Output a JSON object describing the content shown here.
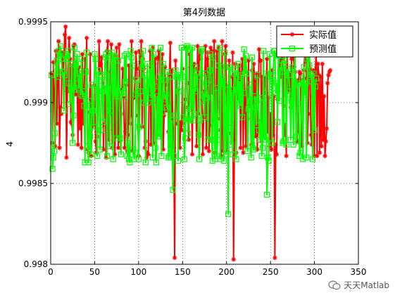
{
  "chart_data": {
    "type": "line",
    "title": "第4列数据",
    "xlabel": "",
    "ylabel": "4",
    "xlim": [
      0,
      350
    ],
    "ylim": [
      0.998,
      0.9995
    ],
    "xticks": [
      0,
      50,
      100,
      150,
      200,
      250,
      300,
      350
    ],
    "yticks": [
      0.998,
      0.9985,
      0.999,
      0.9995
    ],
    "ytick_labels": [
      "0.998",
      "0.9985",
      "0.999",
      "0.9995"
    ],
    "grid": true,
    "legend_position": "top-right",
    "n_points": 313,
    "series": [
      {
        "name": "实际值",
        "color": "#ff0000",
        "marker": "star",
        "values": [
          0.99918,
          0.99875,
          0.99925,
          0.99908,
          0.99873,
          0.99932,
          0.99887,
          0.99915,
          0.99938,
          0.99872,
          0.99897,
          0.99893,
          0.99931,
          0.99919,
          0.99927,
          0.99942,
          0.99947,
          0.99866,
          0.99907,
          0.99928,
          0.9994,
          0.99927,
          0.99888,
          0.99887,
          0.9988,
          0.99935,
          0.99936,
          0.99905,
          0.99925,
          0.99917,
          0.99874,
          0.99922,
          0.99884,
          0.99912,
          0.99872,
          0.9993,
          0.99887,
          0.99907,
          0.99927,
          0.99921,
          0.9994,
          0.99871,
          0.99869,
          0.99894,
          0.9993,
          0.99867,
          0.99885,
          0.99896,
          0.99894,
          0.99911,
          0.99876,
          0.99869,
          0.99879,
          0.99901,
          0.99938,
          0.99918,
          0.99924,
          0.99928,
          0.99912,
          0.99871,
          0.99909,
          0.99903,
          0.99866,
          0.99932,
          0.99938,
          0.99877,
          0.99893,
          0.99919,
          0.99936,
          0.99872,
          0.99883,
          0.99929,
          0.99868,
          0.99893,
          0.99934,
          0.99893,
          0.99872,
          0.99936,
          0.99876,
          0.99893,
          0.99908,
          0.99921,
          0.99903,
          0.99872,
          0.99882,
          0.99911,
          0.9987,
          0.9988,
          0.99923,
          0.99887,
          0.99892,
          0.99938,
          0.9987,
          0.99903,
          0.99903,
          0.99915,
          0.99931,
          0.99921,
          0.99892,
          0.99867,
          0.99932,
          0.99922,
          0.99938,
          0.99885,
          0.99927,
          0.99921,
          0.99872,
          0.99876,
          0.99866,
          0.99869,
          0.99868,
          0.99906,
          0.99932,
          0.99874,
          0.99913,
          0.99934,
          0.99875,
          0.99924,
          0.99927,
          0.99906,
          0.9988,
          0.99928,
          0.99932,
          0.99927,
          0.99893,
          0.99891,
          0.9993,
          0.99871,
          0.99892,
          0.99922,
          0.99895,
          0.99899,
          0.99911,
          0.99882,
          0.99917,
          0.99937,
          0.99873,
          0.9992,
          0.99884,
          0.99872,
          0.99804,
          0.99926,
          0.99912,
          0.99887,
          0.99908,
          0.99886,
          0.99872,
          0.99888,
          0.99883,
          0.99921,
          0.99887,
          0.99895,
          0.99902,
          0.99934,
          0.99912,
          0.99897,
          0.99877,
          0.9993,
          0.99922,
          0.99916,
          0.99868,
          0.99921,
          0.99924,
          0.99921,
          0.99909,
          0.99873,
          0.99935,
          0.99893,
          0.99931,
          0.99932,
          0.99927,
          0.99902,
          0.99868,
          0.99891,
          0.99907,
          0.99935,
          0.99872,
          0.99927,
          0.99931,
          0.9987,
          0.99886,
          0.99934,
          0.99932,
          0.99906,
          0.99908,
          0.99938,
          0.99869,
          0.99886,
          0.99932,
          0.9989,
          0.99934,
          0.99897,
          0.99883,
          0.99867,
          0.99938,
          0.9987,
          0.99901,
          0.9993,
          0.99935,
          0.99907,
          0.9987,
          0.999,
          0.99926,
          0.99916,
          0.99881,
          0.99886,
          0.99931,
          0.99803,
          0.99877,
          0.99924,
          0.99869,
          0.99916,
          0.99903,
          0.99919,
          0.99923,
          0.99872,
          0.99915,
          0.99927,
          0.99869,
          0.99919,
          0.99902,
          0.99873,
          0.99919,
          0.9989,
          0.99926,
          0.99898,
          0.99901,
          0.99874,
          0.9992,
          0.99875,
          0.99924,
          0.99913,
          0.99879,
          0.99918,
          0.99871,
          0.99889,
          0.99933,
          0.99926,
          0.99926,
          0.99876,
          0.99916,
          0.9988,
          0.99911,
          0.99915,
          0.99906,
          0.99927,
          0.99882,
          0.99903,
          0.99873,
          0.99893,
          0.99871,
          0.9992,
          0.9988,
          0.99904,
          0.99804,
          0.99874,
          0.99868,
          0.99902,
          0.99907,
          0.9992,
          0.99926,
          0.99916,
          0.9993,
          0.99927,
          0.99898,
          0.9988,
          0.99886,
          0.99867,
          0.99931,
          0.99907,
          0.99912,
          0.99918,
          0.99897,
          0.99927,
          0.99933,
          0.99929,
          0.99922,
          0.99919,
          0.99912,
          0.99876,
          0.99882,
          0.99914,
          0.99919,
          0.99918,
          0.99874,
          0.99873,
          0.99914,
          0.9992,
          0.9993,
          0.9993,
          0.99915,
          0.99875,
          0.99893,
          0.9993,
          0.99921,
          0.9988,
          0.99874,
          0.99904,
          0.9992,
          0.99867,
          0.9992,
          0.99931,
          0.99867,
          0.99924,
          0.99917,
          0.99869,
          0.99916,
          0.99873,
          0.99924,
          0.99877,
          0.99904,
          0.99867,
          0.99876,
          0.99884,
          0.99912,
          0.99917,
          0.99919,
          0.9992
        ]
      },
      {
        "name": "预测值",
        "color": "#00ff00",
        "marker": "square",
        "values": [
          0.99917,
          0.99859,
          0.99866,
          0.9987,
          0.99881,
          0.99922,
          0.99926,
          0.99916,
          0.99932,
          0.99929,
          0.99935,
          0.99927,
          0.99919,
          0.99919,
          0.99895,
          0.99917,
          0.9993,
          0.99927,
          0.99929,
          0.99932,
          0.99912,
          0.99899,
          0.99908,
          0.99924,
          0.99875,
          0.99892,
          0.99934,
          0.99908,
          0.99923,
          0.9993,
          0.99915,
          0.99909,
          0.99918,
          0.99905,
          0.99927,
          0.99904,
          0.99907,
          0.99898,
          0.99863,
          0.99919,
          0.99931,
          0.99873,
          0.99863,
          0.99901,
          0.99879,
          0.99868,
          0.99911,
          0.99895,
          0.99885,
          0.9993,
          0.99927,
          0.99908,
          0.99867,
          0.9992,
          0.99917,
          0.99871,
          0.99883,
          0.99916,
          0.99907,
          0.99888,
          0.99917,
          0.99928,
          0.9993,
          0.99867,
          0.99909,
          0.99931,
          0.99873,
          0.99895,
          0.99926,
          0.99931,
          0.99865,
          0.99929,
          0.99904,
          0.99928,
          0.99878,
          0.99907,
          0.99926,
          0.99904,
          0.99878,
          0.99868,
          0.99906,
          0.99909,
          0.99904,
          0.99929,
          0.99913,
          0.9993,
          0.99867,
          0.99875,
          0.99865,
          0.99863,
          0.99932,
          0.99928,
          0.99923,
          0.99871,
          0.99865,
          0.99869,
          0.99905,
          0.99914,
          0.99906,
          0.99865,
          0.99885,
          0.99907,
          0.99928,
          0.99922,
          0.99932,
          0.999,
          0.99917,
          0.99863,
          0.99908,
          0.99924,
          0.999,
          0.99912,
          0.99921,
          0.99903,
          0.99934,
          0.99866,
          0.9993,
          0.9991,
          0.99872,
          0.99863,
          0.99904,
          0.99879,
          0.99916,
          0.99879,
          0.99934,
          0.99867,
          0.99894,
          0.99924,
          0.99914,
          0.99902,
          0.99905,
          0.99897,
          0.99919,
          0.99866,
          0.99867,
          0.99916,
          0.99866,
          0.99889,
          0.99846,
          0.99867,
          0.99892,
          0.9992,
          0.99916,
          0.99916,
          0.99864,
          0.99907,
          0.99915,
          0.99917,
          0.99934,
          0.99916,
          0.99891,
          0.99865,
          0.99878,
          0.99934,
          0.99935,
          0.99881,
          0.9989,
          0.99889,
          0.99933,
          0.99896,
          0.99934,
          0.99889,
          0.99893,
          0.99922,
          0.99907,
          0.99918,
          0.99916,
          0.9988,
          0.99865,
          0.99889,
          0.99932,
          0.99933,
          0.99901,
          0.99905,
          0.99891,
          0.99918,
          0.99912,
          0.99903,
          0.99877,
          0.99914,
          0.9992,
          0.9993,
          0.99877,
          0.99864,
          0.99928,
          0.99888,
          0.99865,
          0.99909,
          0.99867,
          0.99877,
          0.99923,
          0.99934,
          0.99865,
          0.99922,
          0.9991,
          0.99915,
          0.99864,
          0.99931,
          0.99868,
          0.9989,
          0.99911,
          0.99831,
          0.99922,
          0.99922,
          0.99874,
          0.99906,
          0.99868,
          0.99908,
          0.99918,
          0.9992,
          0.99865,
          0.99908,
          0.99924,
          0.999,
          0.99913,
          0.99898,
          0.99917,
          0.99891,
          0.99906,
          0.99933,
          0.99918,
          0.99929,
          0.99918,
          0.9987,
          0.99896,
          0.99911,
          0.99901,
          0.99866,
          0.99928,
          0.99872,
          0.99871,
          0.99904,
          0.99897,
          0.99886,
          0.99917,
          0.99902,
          0.99883,
          0.99877,
          0.99903,
          0.99867,
          0.99872,
          0.99932,
          0.99877,
          0.99877,
          0.99918,
          0.99843,
          0.99866,
          0.99864,
          0.9993,
          0.99916,
          0.99914,
          0.99875,
          0.99917,
          0.99932,
          0.99932,
          0.99906,
          0.99912,
          0.99888,
          0.99929,
          0.99901,
          0.99919,
          0.99923,
          0.99926,
          0.99875,
          0.99876,
          0.99919,
          0.99926,
          0.99874,
          0.99905,
          0.99921,
          0.99917,
          0.99907,
          0.99877,
          0.99901,
          0.99922,
          0.99874,
          0.99913,
          0.99932,
          0.99876,
          0.99879,
          0.99911,
          0.99912,
          0.99867,
          0.99869,
          0.99899,
          0.99915,
          0.99865,
          0.99922,
          0.99905,
          0.99912,
          0.99866,
          0.99927,
          0.9993,
          0.99923,
          0.99916,
          0.99917,
          0.99913,
          0.99865,
          0.99918,
          0.99883,
          0.9991,
          0.99915
        ]
      }
    ]
  },
  "watermark": {
    "text": "天天Matlab",
    "icon": "wechat-icon"
  }
}
